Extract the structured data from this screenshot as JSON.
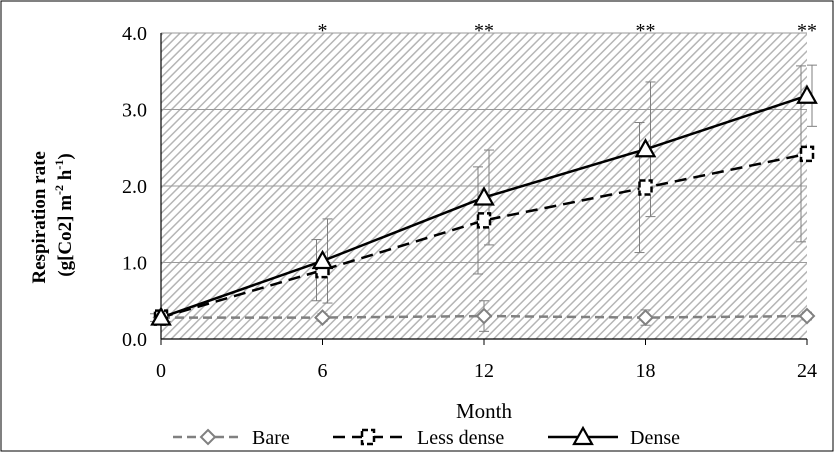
{
  "chart_data": {
    "type": "line",
    "title": "",
    "xlabel": "Month",
    "ylabel_line1": "Respiration rate",
    "ylabel_line2_parts": [
      "(g[Co2] m",
      "-2",
      " h",
      "-1",
      ")"
    ],
    "x": [
      0,
      6,
      12,
      18,
      24
    ],
    "x_tick_labels": [
      "0",
      "6",
      "12",
      "18",
      "24"
    ],
    "y_tick_labels": [
      "0.0",
      "1.0",
      "2.0",
      "3.0",
      "4.0"
    ],
    "xlim": [
      0,
      24
    ],
    "ylim": [
      0,
      4.0
    ],
    "significance": [
      "",
      "*",
      "**",
      "**",
      "**"
    ],
    "legend_position": "bottom",
    "series": [
      {
        "name": "Bare",
        "values": [
          0.28,
          0.28,
          0.3,
          0.28,
          0.3
        ],
        "errors": [
          0.05,
          0.05,
          0.2,
          0.1,
          0.05
        ],
        "color": "#808080",
        "marker": "diamond",
        "line_style": "dashed"
      },
      {
        "name": "Less dense",
        "values": [
          0.28,
          0.9,
          1.55,
          1.98,
          2.42
        ],
        "errors": [
          0.05,
          0.4,
          0.7,
          0.85,
          1.15
        ],
        "color": "#000000",
        "marker": "square",
        "line_style": "dashed"
      },
      {
        "name": "Dense",
        "values": [
          0.28,
          1.02,
          1.85,
          2.48,
          3.18
        ],
        "errors": [
          0.05,
          0.55,
          0.62,
          0.88,
          0.4
        ],
        "color": "#000000",
        "marker": "triangle",
        "line_style": "solid"
      }
    ]
  }
}
